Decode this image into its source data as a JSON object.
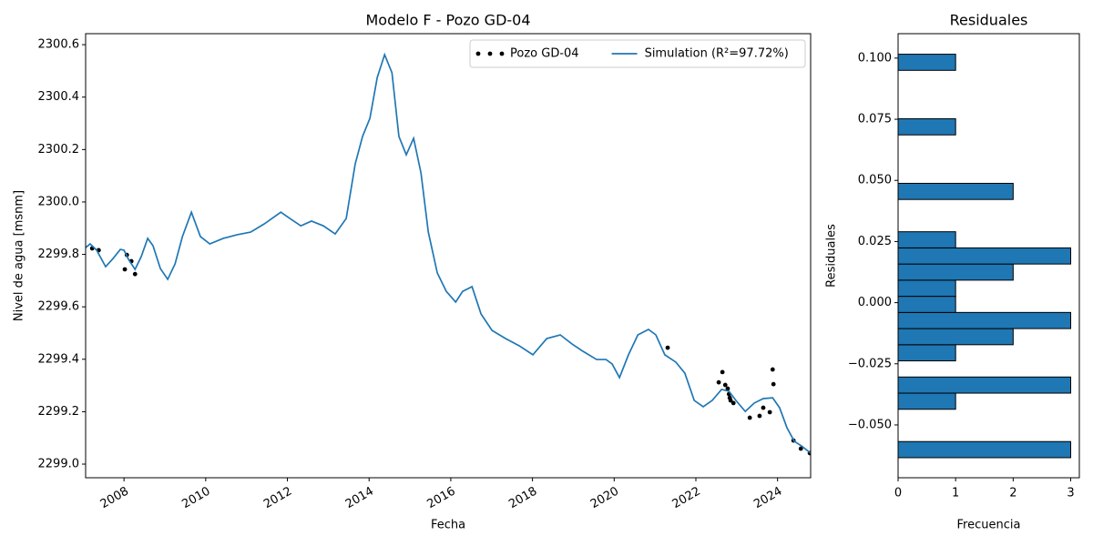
{
  "chart_data": [
    {
      "type": "line",
      "title": "Modelo F - Pozo GD-04",
      "x_label": "Fecha",
      "y_label": "Nivel de agua [msnm]",
      "xlim": [
        2007.06,
        2024.81
      ],
      "ylim": [
        2298.948,
        2300.642
      ],
      "xticks": [
        2008,
        2010,
        2012,
        2014,
        2016,
        2018,
        2020,
        2022,
        2024
      ],
      "yticks": [
        {
          "value": 2299,
          "label": "2299.0"
        },
        2299.2,
        2299.4,
        2299.6,
        2299.8,
        {
          "value": 2300,
          "label": "2300.0"
        },
        2300.2,
        2300.4,
        2300.6
      ],
      "legend": "upper right",
      "series": [
        {
          "name": "Pozo GD-04",
          "type": "scatter",
          "color": "#000000",
          "x": [
            2007.22,
            2007.38,
            2008.07,
            2008.02,
            2008.18,
            2008.27,
            2021.31,
            2022.56,
            2022.65,
            2022.72,
            2022.78,
            2022.81,
            2022.83,
            2022.85,
            2022.92,
            2023.32,
            2023.56,
            2023.65,
            2023.81,
            2023.88,
            2023.9,
            2024.39,
            2024.57,
            2024.79
          ],
          "values": [
            2299.823,
            2299.816,
            2299.798,
            2299.743,
            2299.774,
            2299.725,
            2299.444,
            2299.312,
            2299.351,
            2299.302,
            2299.288,
            2299.267,
            2299.253,
            2299.243,
            2299.233,
            2299.177,
            2299.184,
            2299.215,
            2299.198,
            2299.361,
            2299.305,
            2299.09,
            2299.059,
            2299.042
          ]
        },
        {
          "name": "Simulation (R²=97.72%)",
          "type": "line",
          "color": "#1f77b4",
          "x": [
            2007.06,
            2007.17,
            2007.33,
            2007.55,
            2007.73,
            2007.91,
            2008.0,
            2008.11,
            2008.27,
            2008.42,
            2008.58,
            2008.71,
            2008.89,
            2009.07,
            2009.25,
            2009.43,
            2009.65,
            2009.87,
            2010.1,
            2010.43,
            2010.77,
            2011.1,
            2011.43,
            2011.84,
            2012.06,
            2012.33,
            2012.59,
            2012.88,
            2013.17,
            2013.44,
            2013.66,
            2013.84,
            2014.02,
            2014.2,
            2014.38,
            2014.56,
            2014.73,
            2014.91,
            2015.09,
            2015.27,
            2015.45,
            2015.67,
            2015.89,
            2016.12,
            2016.29,
            2016.52,
            2016.74,
            2017.01,
            2017.34,
            2017.68,
            2018.01,
            2018.35,
            2018.68,
            2018.97,
            2019.24,
            2019.57,
            2019.8,
            2019.95,
            2020.13,
            2020.35,
            2020.58,
            2020.84,
            2021.02,
            2021.24,
            2021.51,
            2021.73,
            2021.96,
            2022.18,
            2022.4,
            2022.63,
            2022.81,
            2022.98,
            2023.21,
            2023.43,
            2023.65,
            2023.88,
            2024.05,
            2024.23,
            2024.41,
            2024.59,
            2024.81
          ],
          "values": [
            2299.826,
            2299.84,
            2299.816,
            2299.753,
            2299.784,
            2299.819,
            2299.816,
            2299.781,
            2299.743,
            2299.791,
            2299.861,
            2299.833,
            2299.746,
            2299.705,
            2299.764,
            2299.868,
            2299.961,
            2299.868,
            2299.84,
            2299.861,
            2299.875,
            2299.885,
            2299.916,
            2299.961,
            2299.937,
            2299.909,
            2299.927,
            2299.909,
            2299.878,
            2299.937,
            2300.145,
            2300.25,
            2300.319,
            2300.475,
            2300.562,
            2300.493,
            2300.25,
            2300.18,
            2300.243,
            2300.111,
            2299.885,
            2299.729,
            2299.659,
            2299.618,
            2299.659,
            2299.677,
            2299.573,
            2299.51,
            2299.479,
            2299.451,
            2299.417,
            2299.479,
            2299.493,
            2299.458,
            2299.43,
            2299.399,
            2299.399,
            2299.382,
            2299.33,
            2299.417,
            2299.493,
            2299.514,
            2299.493,
            2299.417,
            2299.389,
            2299.347,
            2299.243,
            2299.219,
            2299.243,
            2299.285,
            2299.278,
            2299.243,
            2299.201,
            2299.233,
            2299.25,
            2299.253,
            2299.215,
            2299.139,
            2299.087,
            2299.069,
            2299.042
          ]
        }
      ]
    },
    {
      "type": "histogram",
      "orientation": "horizontal",
      "title": "Residuales",
      "x_label": "Frecuencia",
      "y_label": "Residuales",
      "color": "#1f77b4",
      "edgecolor": "#000000",
      "xlim": [
        0,
        3.15
      ],
      "ylim": [
        -0.0716,
        0.11
      ],
      "xticks": [
        0,
        1,
        2,
        3
      ],
      "yticks": [
        {
          "value": -0.05,
          "label": "−0.050"
        },
        {
          "value": -0.025,
          "label": "−0.025"
        },
        {
          "value": 0,
          "label": "0.000"
        },
        0.025,
        {
          "value": 0.05,
          "label": "0.050"
        },
        0.075,
        {
          "value": 0.1,
          "label": "0.100"
        }
      ],
      "bins": [
        -0.0634,
        -0.0568,
        -0.0502,
        -0.0436,
        -0.037,
        -0.0304,
        -0.0238,
        -0.0172,
        -0.0106,
        -0.004,
        0.0026,
        0.0092,
        0.0158,
        0.0224,
        0.029,
        0.0356,
        0.0422,
        0.0488,
        0.0554,
        0.062,
        0.0686,
        0.0752,
        0.0818,
        0.0884,
        0.095,
        0.1016
      ],
      "values": [
        3,
        0,
        0,
        1,
        3,
        0,
        1,
        2,
        3,
        1,
        1,
        2,
        3,
        1,
        0,
        0,
        2,
        0,
        0,
        0,
        1,
        0,
        0,
        0,
        1
      ]
    }
  ]
}
